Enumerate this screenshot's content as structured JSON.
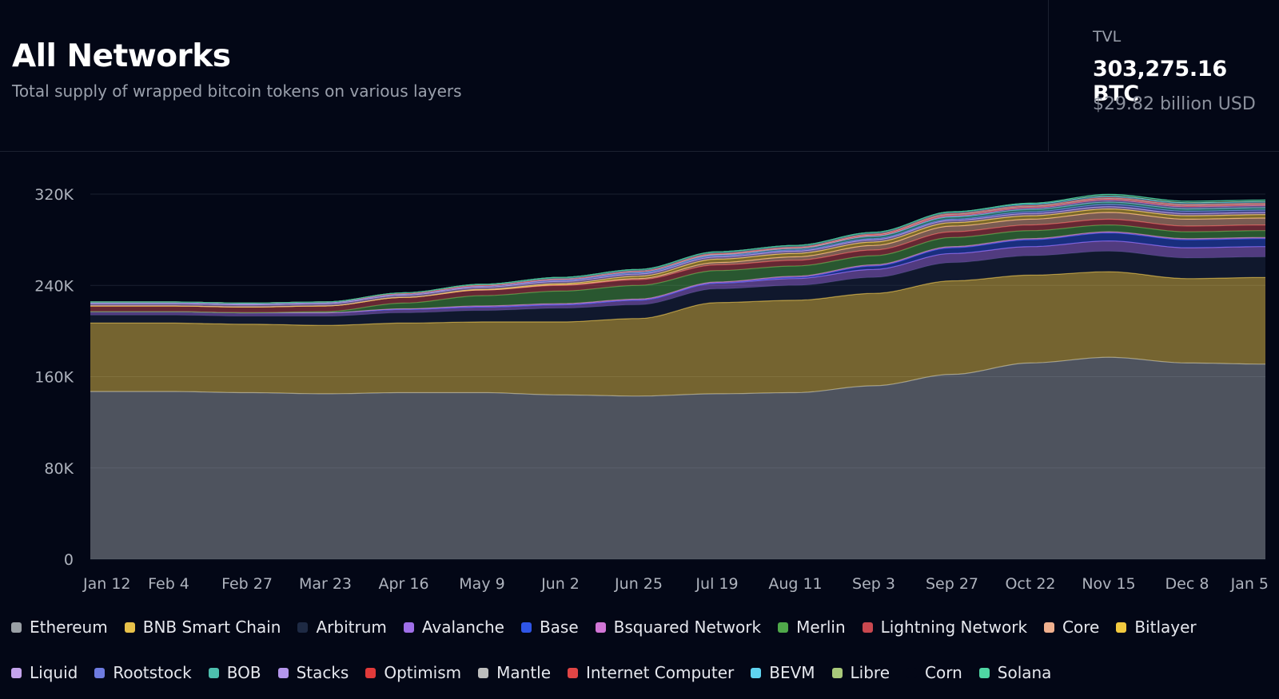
{
  "header": {
    "title": "All Networks",
    "subtitle": "Total supply of wrapped bitcoin tokens on various layers"
  },
  "tvl": {
    "label": "TVL",
    "btc": "303,275.16 BTC",
    "usd": "$29.82 billion USD"
  },
  "chart_data": {
    "type": "area",
    "stacked": true,
    "title": "",
    "xlabel": "",
    "ylabel": "",
    "ylim": [
      0,
      320000
    ],
    "y_ticks": [
      0,
      80000,
      160000,
      240000,
      320000
    ],
    "y_tick_labels": [
      "0",
      "80K",
      "160K",
      "240K",
      "320K"
    ],
    "x_tick_labels": [
      "Jan 12",
      "Feb 4",
      "Feb 27",
      "Mar 23",
      "Apr 16",
      "May 9",
      "Jun 2",
      "Jun 25",
      "Jul 19",
      "Aug 11",
      "Sep 3",
      "Sep 27",
      "Oct 22",
      "Nov 15",
      "Dec 8",
      "Jan 5"
    ],
    "grid": true,
    "legend_position": "bottom",
    "series": [
      {
        "name": "Ethereum",
        "color": "#9aa0a6",
        "values": [
          147000,
          147000,
          146000,
          145000,
          146000,
          146000,
          144000,
          143000,
          145000,
          146000,
          152000,
          162000,
          172000,
          177000,
          172000,
          171000
        ]
      },
      {
        "name": "BNB Smart Chain",
        "color": "#e8c14a",
        "values": [
          60000,
          60000,
          60000,
          60000,
          61000,
          62000,
          64000,
          68000,
          80000,
          81000,
          81000,
          82000,
          77000,
          75000,
          74000,
          76000
        ]
      },
      {
        "name": "Arbitrum",
        "color": "#1e2a44",
        "values": [
          7000,
          7000,
          7000,
          8000,
          9000,
          10000,
          12000,
          12000,
          12000,
          13000,
          14000,
          16000,
          17000,
          18000,
          18000,
          18000
        ]
      },
      {
        "name": "Avalanche",
        "color": "#9f6fe8",
        "values": [
          3000,
          3000,
          3000,
          3000,
          3000,
          3000,
          3000,
          4000,
          5000,
          6000,
          7000,
          8000,
          8000,
          9000,
          9000,
          9000
        ]
      },
      {
        "name": "Base",
        "color": "#2f55e6",
        "values": [
          0,
          0,
          0,
          0,
          0,
          0,
          0,
          0,
          0,
          1000,
          3000,
          5000,
          6000,
          7000,
          7000,
          7000
        ]
      },
      {
        "name": "Bsquared Network",
        "color": "#d276d6",
        "values": [
          0,
          0,
          0,
          0,
          500,
          1000,
          1000,
          1000,
          1000,
          1000,
          1000,
          1000,
          1000,
          1000,
          1000,
          1000
        ]
      },
      {
        "name": "Merlin",
        "color": "#4fa84a",
        "values": [
          0,
          0,
          0,
          1000,
          5000,
          9000,
          11000,
          12000,
          10000,
          9000,
          8000,
          8000,
          7000,
          6000,
          6000,
          6000
        ]
      },
      {
        "name": "Lightning Network",
        "color": "#c9484f",
        "values": [
          5000,
          5000,
          5000,
          5000,
          5000,
          5000,
          5000,
          5000,
          5000,
          5000,
          5000,
          5000,
          5000,
          5000,
          5000,
          5000
        ]
      },
      {
        "name": "Core",
        "color": "#f0b08e",
        "values": [
          0,
          0,
          0,
          0,
          0,
          0,
          500,
          1000,
          2000,
          3000,
          4000,
          5000,
          5000,
          6000,
          6000,
          6000
        ]
      },
      {
        "name": "Bitlayer",
        "color": "#f2c93f",
        "values": [
          0,
          0,
          0,
          0,
          0,
          500,
          1000,
          2000,
          3000,
          3000,
          3000,
          3000,
          3000,
          3000,
          3000,
          3000
        ]
      },
      {
        "name": "Liquid",
        "color": "#c4a3ec",
        "values": [
          2000,
          2000,
          2000,
          2000,
          2000,
          2000,
          2000,
          2000,
          2000,
          2000,
          2000,
          2000,
          2000,
          2000,
          2000,
          2000
        ]
      },
      {
        "name": "Rootstock",
        "color": "#6e7be0",
        "values": [
          1000,
          1000,
          1000,
          1000,
          1000,
          1000,
          1000,
          1000,
          1000,
          1000,
          1000,
          1000,
          1500,
          2000,
          2000,
          2000
        ]
      },
      {
        "name": "BOB",
        "color": "#4dbfae",
        "values": [
          0,
          0,
          0,
          0,
          0,
          0,
          500,
          1000,
          1000,
          1500,
          2000,
          2000,
          2000,
          2000,
          2000,
          2000
        ]
      },
      {
        "name": "Stacks",
        "color": "#b496ec",
        "values": [
          0,
          0,
          0,
          0,
          0,
          0,
          0,
          0,
          0,
          0,
          500,
          1000,
          1500,
          2000,
          2000,
          2000
        ]
      },
      {
        "name": "Optimism",
        "color": "#e13a3a",
        "values": [
          500,
          500,
          500,
          500,
          500,
          500,
          500,
          500,
          500,
          500,
          500,
          500,
          500,
          500,
          500,
          500
        ]
      },
      {
        "name": "Mantle",
        "color": "#bdbdbd",
        "values": [
          0,
          0,
          0,
          0,
          0,
          0,
          0,
          0,
          0,
          0,
          500,
          1000,
          1000,
          1000,
          1000,
          1000
        ]
      },
      {
        "name": "Internet Computer",
        "color": "#e04545",
        "values": [
          0,
          0,
          0,
          0,
          0,
          0,
          0,
          0,
          500,
          500,
          500,
          500,
          500,
          500,
          500,
          500
        ]
      },
      {
        "name": "BEVM",
        "color": "#5fd3f0",
        "values": [
          0,
          0,
          0,
          0,
          500,
          1000,
          1500,
          1500,
          1500,
          1500,
          1500,
          1500,
          1500,
          1500,
          1500,
          1500
        ]
      },
      {
        "name": "Libre",
        "color": "#a9c97a",
        "values": [
          0,
          0,
          0,
          0,
          0,
          0,
          0,
          0,
          0,
          0,
          0,
          0,
          500,
          500,
          500,
          500
        ]
      },
      {
        "name": "Corn",
        "color": "#030716",
        "values": [
          0,
          0,
          0,
          0,
          0,
          0,
          0,
          0,
          0,
          0,
          0,
          0,
          0,
          300,
          300,
          300
        ]
      },
      {
        "name": "Solana",
        "color": "#4fd6a3",
        "values": [
          0,
          0,
          0,
          0,
          0,
          0,
          0,
          0,
          0,
          0,
          0,
          0,
          0,
          500,
          500,
          500
        ]
      }
    ]
  }
}
